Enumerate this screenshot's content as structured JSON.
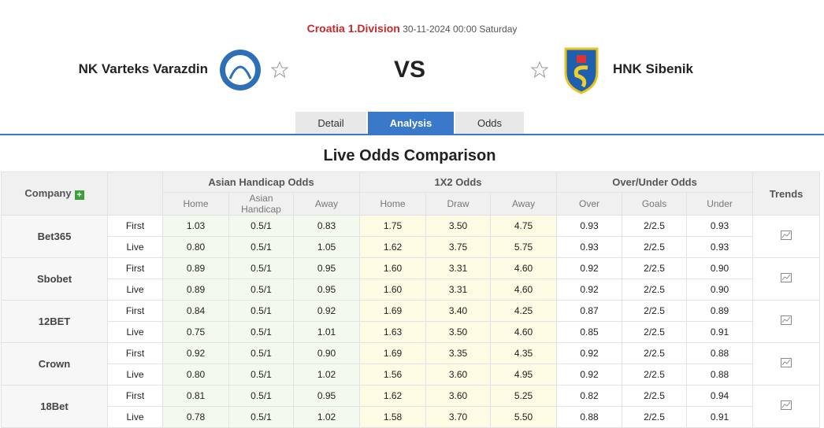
{
  "header": {
    "league": "Croatia 1.Division",
    "datetime": "30-11-2024 00:00 Saturday",
    "home": "NK Varteks Varazdin",
    "vs": "VS",
    "away": "HNK Sibenik"
  },
  "tabs": [
    "Detail",
    "Analysis",
    "Odds"
  ],
  "title": "Live Odds Comparison",
  "table": {
    "company_header": "Company",
    "groups": [
      "Asian Handicap Odds",
      "1X2 Odds",
      "Over/Under Odds"
    ],
    "trends_header": "Trends",
    "subheaders": [
      "Home",
      "Asian Handicap",
      "Away",
      "Home",
      "Draw",
      "Away",
      "Over",
      "Goals",
      "Under"
    ],
    "rows": [
      {
        "company": "Bet365",
        "lines": [
          {
            "type": "First",
            "values": [
              "1.03",
              "0.5/1",
              "0.83",
              "1.75",
              "3.50",
              "4.75",
              "0.93",
              "2/2.5",
              "0.93"
            ]
          },
          {
            "type": "Live",
            "values": [
              "0.80",
              "0.5/1",
              "1.05",
              "1.62",
              "3.75",
              "5.75",
              "0.93",
              "2/2.5",
              "0.93"
            ]
          }
        ]
      },
      {
        "company": "Sbobet",
        "lines": [
          {
            "type": "First",
            "values": [
              "0.89",
              "0.5/1",
              "0.95",
              "1.60",
              "3.31",
              "4.60",
              "0.92",
              "2/2.5",
              "0.90"
            ]
          },
          {
            "type": "Live",
            "values": [
              "0.89",
              "0.5/1",
              "0.95",
              "1.60",
              "3.31",
              "4.60",
              "0.92",
              "2/2.5",
              "0.90"
            ]
          }
        ]
      },
      {
        "company": "12BET",
        "lines": [
          {
            "type": "First",
            "values": [
              "0.84",
              "0.5/1",
              "0.92",
              "1.69",
              "3.40",
              "4.25",
              "0.87",
              "2/2.5",
              "0.89"
            ]
          },
          {
            "type": "Live",
            "values": [
              "0.75",
              "0.5/1",
              "1.01",
              "1.63",
              "3.50",
              "4.60",
              "0.85",
              "2/2.5",
              "0.91"
            ]
          }
        ]
      },
      {
        "company": "Crown",
        "lines": [
          {
            "type": "First",
            "values": [
              "0.92",
              "0.5/1",
              "0.90",
              "1.69",
              "3.35",
              "4.35",
              "0.92",
              "2/2.5",
              "0.88"
            ]
          },
          {
            "type": "Live",
            "values": [
              "0.80",
              "0.5/1",
              "1.02",
              "1.56",
              "3.60",
              "4.95",
              "0.92",
              "2/2.5",
              "0.88"
            ]
          }
        ]
      },
      {
        "company": "18Bet",
        "lines": [
          {
            "type": "First",
            "values": [
              "0.81",
              "0.5/1",
              "0.95",
              "1.62",
              "3.60",
              "5.25",
              "0.82",
              "2/2.5",
              "0.94"
            ]
          },
          {
            "type": "Live",
            "values": [
              "0.78",
              "0.5/1",
              "1.02",
              "1.58",
              "3.70",
              "5.50",
              "0.88",
              "2/2.5",
              "0.91"
            ]
          }
        ]
      }
    ]
  }
}
